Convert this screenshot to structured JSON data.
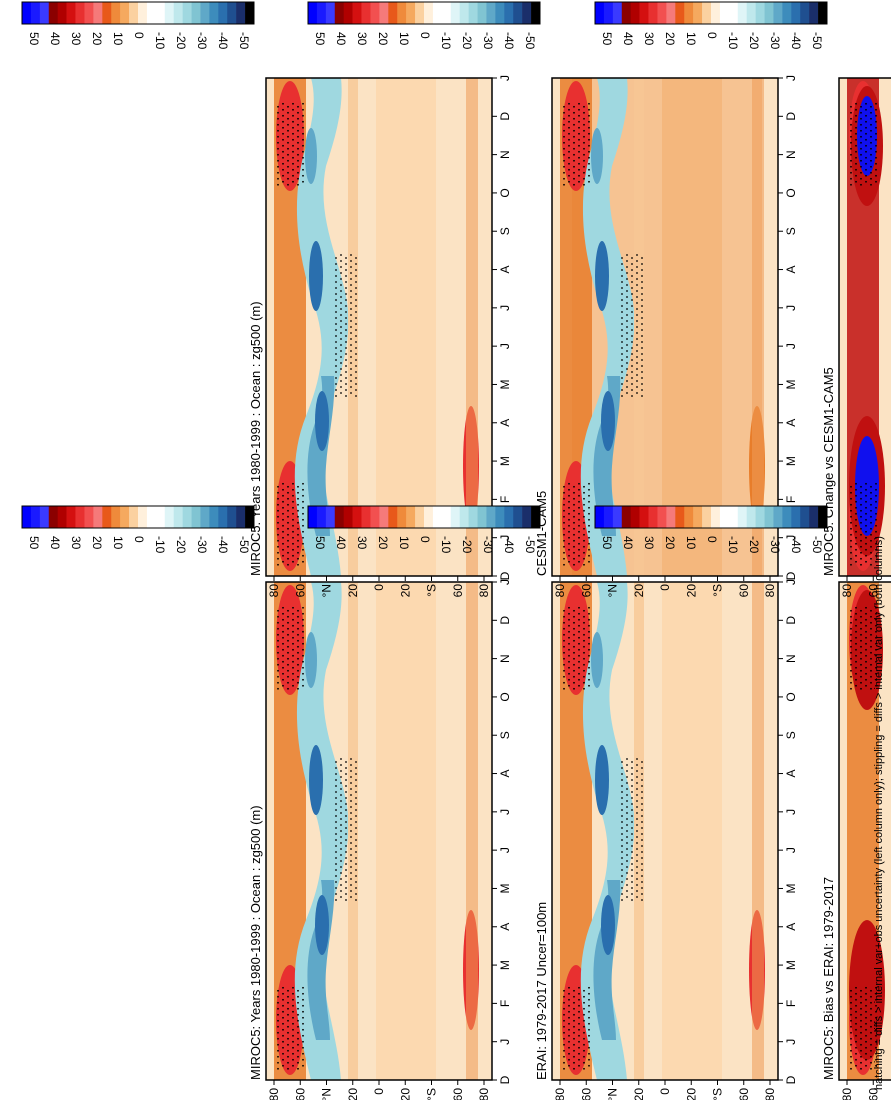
{
  "figure": {
    "footnote": "hatching = diffs > internal var+obs uncertainty (left column only); stippling = diffs > internal var only (both columns)"
  },
  "colorbar": {
    "levels": [
      50,
      40,
      30,
      20,
      10,
      0,
      -10,
      -20,
      -30,
      -40,
      -50
    ],
    "colors": [
      "#0000ff",
      "#1a1aff",
      "#3a3aff",
      "#8b0000",
      "#b00000",
      "#d41010",
      "#e83030",
      "#f25050",
      "#f57a7a",
      "#e8591a",
      "#ef8a3b",
      "#f5a95f",
      "#fbd1a0",
      "#fff0dc",
      "#ffffff",
      "#ffffff",
      "#dff5f7",
      "#bfe8ec",
      "#9fd8e0",
      "#80c4d2",
      "#5fa8c8",
      "#3d8cbc",
      "#2a6fae",
      "#1f4f90",
      "#1a2e6a",
      "#000000"
    ]
  },
  "chart_data": [
    {
      "type": "heatmap",
      "title": "MIROC5: Years 1980-1999 : Ocean : zg500 (m)",
      "x": [
        "D",
        "J",
        "F",
        "M",
        "A",
        "M",
        "J",
        "J",
        "A",
        "S",
        "O",
        "N",
        "D",
        "J"
      ],
      "y_ticks": [
        "80",
        "60",
        "°N",
        "20",
        "0",
        "20",
        "°S",
        "60",
        "80"
      ],
      "panel": "top-left"
    },
    {
      "type": "heatmap",
      "title": "MIROC5: Years 1980-1999 : Ocean : zg500 (m)",
      "x": [
        "D",
        "J",
        "F",
        "M",
        "A",
        "M",
        "J",
        "J",
        "A",
        "S",
        "O",
        "N",
        "D",
        "J"
      ],
      "y_ticks": [
        "80",
        "60",
        "°N",
        "20",
        "0",
        "20",
        "°S",
        "60",
        "80"
      ],
      "panel": "top-right"
    },
    {
      "type": "heatmap",
      "title": "ERAI: 1979-2017 Uncer=100m",
      "x": [
        "D",
        "J",
        "F",
        "M",
        "A",
        "M",
        "J",
        "J",
        "A",
        "S",
        "O",
        "N",
        "D",
        "J"
      ],
      "y_ticks": [
        "80",
        "60",
        "°N",
        "20",
        "0",
        "20",
        "°S",
        "60",
        "80"
      ],
      "panel": "middle-left"
    },
    {
      "type": "heatmap",
      "title": "CESM1-CAM5",
      "x": [
        "D",
        "J",
        "F",
        "M",
        "A",
        "M",
        "J",
        "J",
        "A",
        "S",
        "O",
        "N",
        "D",
        "J"
      ],
      "y_ticks": [
        "80",
        "60",
        "°N",
        "20",
        "0",
        "20",
        "°S",
        "60",
        "80"
      ],
      "panel": "middle-right"
    },
    {
      "type": "heatmap",
      "title": "MIROC5: Bias vs ERAI: 1979-2017",
      "x": [
        "D",
        "J",
        "F",
        "M",
        "A",
        "M",
        "J",
        "J",
        "A",
        "S",
        "O",
        "N",
        "D",
        "J"
      ],
      "y_ticks": [
        "80",
        "60",
        "°N",
        "20",
        "0",
        "20",
        "°S",
        "60",
        "80"
      ],
      "panel": "bottom-left"
    },
    {
      "type": "heatmap",
      "title": "MIROC5: Change vs CESM1-CAM5",
      "x": [
        "D",
        "J",
        "F",
        "M",
        "A",
        "M",
        "J",
        "J",
        "A",
        "S",
        "O",
        "N",
        "D",
        "J"
      ],
      "y_ticks": [
        "80",
        "60",
        "°N",
        "20",
        "0",
        "20",
        "°S",
        "60",
        "80"
      ],
      "panel": "bottom-right"
    }
  ]
}
